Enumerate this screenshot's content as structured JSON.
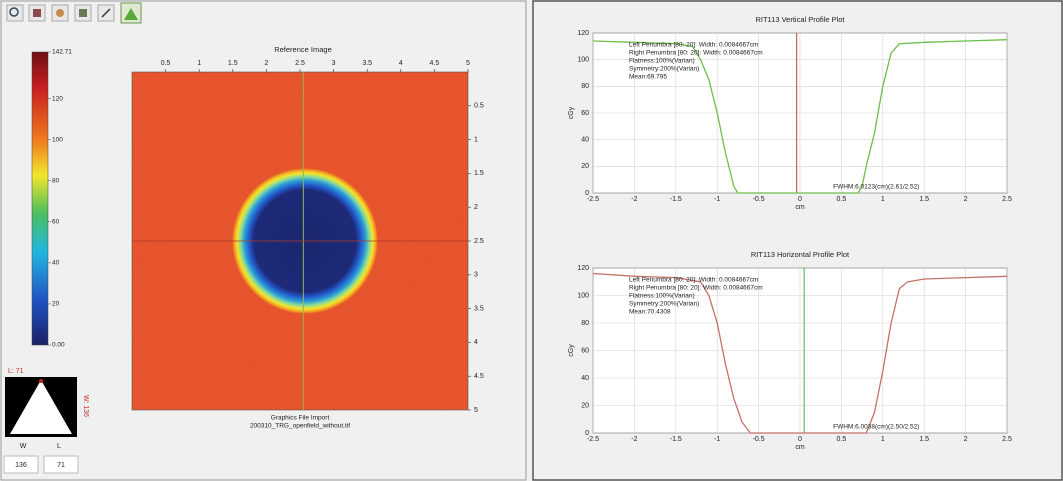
{
  "colorbar": {
    "lim": [
      0,
      142.71
    ],
    "ticks": [
      {
        "value": 0,
        "label": "0.00"
      },
      20,
      40,
      60,
      80,
      100,
      120,
      142.71
    ]
  },
  "window_level": {
    "level_label": "L: 71",
    "width_label": "W: 136",
    "w_axis": "W",
    "l_axis": "L",
    "width": 136,
    "level": 71
  },
  "image": {
    "title": "Reference Image",
    "caption": "Graphics File Import",
    "file": "200310_TRG_openfield_without.tif",
    "xlim": [
      0,
      5
    ],
    "xticks": [
      0.5,
      1,
      1.5,
      2,
      2.5,
      3,
      3.5,
      4,
      4.5,
      5
    ],
    "ylim": [
      0,
      5
    ],
    "yticks": [
      0.5,
      1,
      1.5,
      2,
      2.5,
      3,
      3.5,
      4,
      4.5,
      5
    ],
    "cursor_x": 2.55,
    "cursor_y": 2.5
  },
  "chart_data": [
    {
      "type": "line",
      "title": "RIT113 Vertical Profile Plot",
      "x_label": "cm",
      "y_label": "cGy",
      "annotations": [
        "Left Penumbra [80: 20]: Width: 0.0084667cm",
        "Right Penumbra [80: 20]: Width: 0.0084667cm",
        "Flatness:100%(Varian)",
        "Symmetry:200%(Varian)",
        "Mean:69.795"
      ],
      "fwhm": "FWHM:6.0123(cm)(2.61/2.52)",
      "x": [
        -2.5,
        -2,
        -1.5,
        -1.3,
        -1.2,
        -1.1,
        -1,
        -0.9,
        -0.8,
        -0.75,
        0.7,
        0.75,
        0.8,
        0.9,
        1,
        1.1,
        1.2,
        1.5,
        2,
        2.5
      ],
      "series": [
        {
          "color": "#6cbf4a",
          "values": [
            114,
            113,
            112,
            110,
            100,
            85,
            60,
            30,
            5,
            0,
            0,
            5,
            20,
            45,
            80,
            105,
            112,
            113,
            114,
            115
          ]
        }
      ],
      "cursor": -0.04,
      "cursor_color": "#b0483a",
      "xlim": [
        -2.5,
        2.5
      ],
      "xticks": [
        -2.5,
        -2,
        -1.5,
        -1,
        -0.5,
        0,
        0.5,
        1,
        1.5,
        2,
        2.5
      ],
      "ylim": [
        0,
        120
      ],
      "yticks": [
        0,
        20,
        40,
        60,
        80,
        100,
        120
      ],
      "grid": true
    },
    {
      "type": "line",
      "title": "RIT113 Horizontal Profile Plot",
      "x_label": "cm",
      "y_label": "cGy",
      "annotations": [
        "Left Penumbra [80: 20]: Width: 0.0084667cm",
        "Right Penumbra [80: 20]: Width: 0.0084667cm",
        "Flatness:100%(Varian)",
        "Symmetry:200%(Varian)",
        "Mean:70.4308"
      ],
      "fwhm": "FWHM:6.0038(cm)(2.50/2.52)",
      "x": [
        -2.5,
        -2,
        -1.5,
        -1.2,
        -1.1,
        -1,
        -0.9,
        -0.8,
        -0.7,
        -0.6,
        0.8,
        0.9,
        1,
        1.1,
        1.2,
        1.3,
        1.5,
        2,
        2.5
      ],
      "series": [
        {
          "color": "#c4706a",
          "values": [
            116,
            114,
            113,
            110,
            100,
            80,
            50,
            25,
            8,
            0,
            0,
            15,
            45,
            80,
            105,
            110,
            112,
            113,
            114
          ]
        }
      ],
      "cursor": 0.05,
      "cursor_color": "#3fae3f",
      "xlim": [
        -2.5,
        2.5
      ],
      "xticks": [
        -2.5,
        -2,
        -1.5,
        -1,
        -0.5,
        0,
        0.5,
        1,
        1.5,
        2,
        2.5
      ],
      "ylim": [
        0,
        120
      ],
      "yticks": [
        0,
        20,
        40,
        60,
        80,
        100,
        120
      ],
      "grid": true
    }
  ]
}
